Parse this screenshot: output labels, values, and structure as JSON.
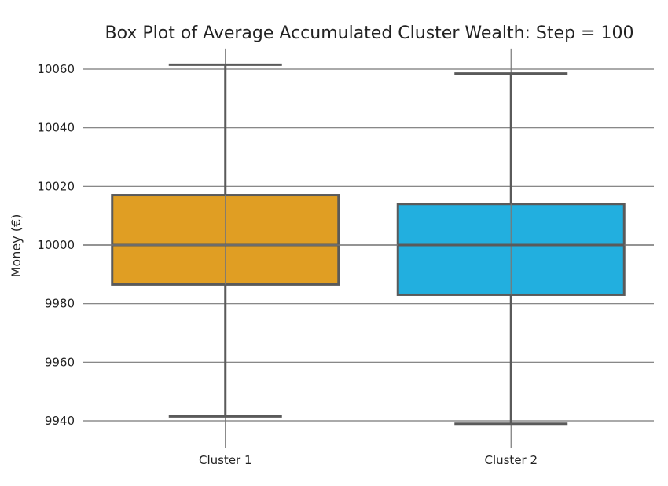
{
  "chart_data": {
    "type": "box",
    "title": "Box Plot of Average Accumulated Cluster Wealth: Step = 100",
    "xlabel": "",
    "ylabel": "Money (€)",
    "ylim": [
      9933,
      10067
    ],
    "yticks": [
      9940,
      9960,
      9980,
      10000,
      10020,
      10040,
      10060
    ],
    "grid": true,
    "legend": "none",
    "categories": [
      "Cluster 1",
      "Cluster 2"
    ],
    "boxes": [
      {
        "category": "Cluster 1",
        "whisker_low": 9941.5,
        "q1": 9986.5,
        "median": 10000,
        "q3": 10017,
        "whisker_high": 10061.5,
        "color": "#E09E23"
      },
      {
        "category": "Cluster 2",
        "whisker_low": 9939,
        "q1": 9983,
        "median": 10000,
        "q3": 10014,
        "whisker_high": 10058.5,
        "color": "#22AFDF"
      }
    ]
  }
}
